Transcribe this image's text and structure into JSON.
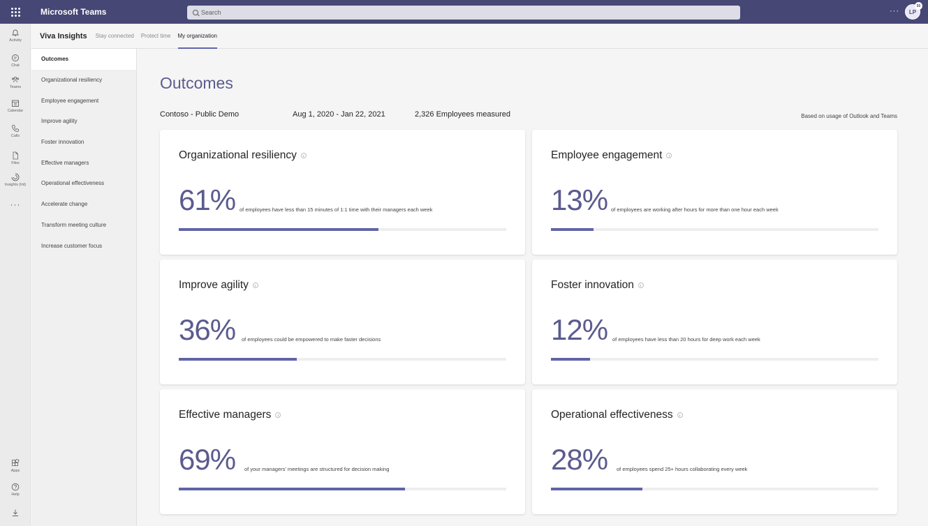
{
  "app": {
    "title": "Microsoft Teams"
  },
  "search": {
    "placeholder": "Search"
  },
  "user": {
    "initials": "LP",
    "badge": "50"
  },
  "rail": [
    {
      "label": "Activity",
      "icon": "bell-icon"
    },
    {
      "label": "Chat",
      "icon": "chat-icon"
    },
    {
      "label": "Teams",
      "icon": "teams-icon"
    },
    {
      "label": "Calendar",
      "icon": "calendar-icon"
    },
    {
      "label": "Calls",
      "icon": "phone-icon"
    },
    {
      "label": "Files",
      "icon": "file-icon"
    },
    {
      "label": "Insights (Int)",
      "icon": "insights-icon"
    }
  ],
  "rail_bottom": [
    {
      "label": "Apps",
      "icon": "apps-icon"
    },
    {
      "label": "Help",
      "icon": "help-icon"
    }
  ],
  "header": {
    "title": "Viva Insights",
    "tabs": [
      "Stay connected",
      "Protect time",
      "My organization"
    ],
    "active_tab": 2
  },
  "leftnav": {
    "items": [
      "Outcomes",
      "Organizational resiliency",
      "Employee engagement",
      "Improve agility",
      "Foster innovation",
      "Effective managers",
      "Operational effectiveness",
      "Accelerate change",
      "Transform meeting culture",
      "Increase customer focus"
    ],
    "active": 0
  },
  "main": {
    "title": "Outcomes",
    "org": "Contoso - Public Demo",
    "dates": "Aug 1, 2020 - Jan 22, 2021",
    "employees": "2,326 Employees measured",
    "based_on": "Based on usage of Outlook and Teams"
  },
  "cards": [
    {
      "title": "Organizational resiliency",
      "percent": "61%",
      "value": 61,
      "desc": "of employees have less than 15 minutes of 1:1 time with their managers each week"
    },
    {
      "title": "Employee engagement",
      "percent": "13%",
      "value": 13,
      "desc": "of employees are working after hours for more than one hour each week"
    },
    {
      "title": "Improve agility",
      "percent": "36%",
      "value": 36,
      "desc": "of employees could be empowered to make faster decisions"
    },
    {
      "title": "Foster innovation",
      "percent": "12%",
      "value": 12,
      "desc": "of employees have less than 20 hours for deep work each week"
    },
    {
      "title": "Effective managers",
      "percent": "69%",
      "value": 69,
      "desc": "of your managers' meetings are structured for decision making"
    },
    {
      "title": "Operational effectiveness",
      "percent": "28%",
      "value": 28,
      "desc": "of employees spend 25+ hours collaborating every week"
    }
  ],
  "colors": {
    "topbar": "#464775",
    "accent": "#6264a7",
    "title": "#5b5b8f"
  }
}
